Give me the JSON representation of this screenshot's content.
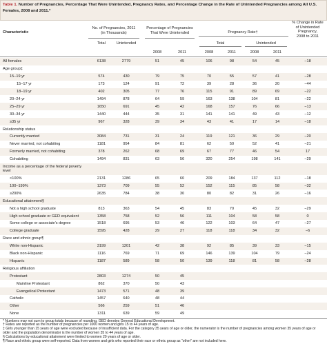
{
  "title": {
    "label": "Table 1.",
    "text": "Number of Pregnancies, Percentage That Were Unintended, Pregnancy Rates, and Percentage Change in the Rate of Unintended Pregnancies among All U.S. Females, 2008 and 2011.*"
  },
  "header": {
    "characteristic": "Characteristic",
    "pregnancies": {
      "title": [
        "No. of Pregnancies, 2011",
        "(in Thousands)"
      ],
      "columns": [
        "Total",
        "Unintended"
      ]
    },
    "percentage": {
      "title": [
        "Percentage of Pregnancies",
        "That Were Unintended"
      ],
      "columns": [
        "2008",
        "2011"
      ]
    },
    "rate": {
      "title": "Pregnancy Rate†",
      "groups": [
        {
          "name": "Total",
          "columns": [
            "2008",
            "2011"
          ]
        },
        {
          "name": "Unintended",
          "columns": [
            "2008",
            "2011"
          ]
        }
      ]
    },
    "change": [
      "% Change in Rate",
      "of Unintended",
      "Pregnancy,",
      "2008 to 2011"
    ]
  },
  "rows": [
    {
      "label": "All females",
      "cells": [
        "6138",
        "2779",
        "51",
        "45",
        "106",
        "98",
        "54",
        "45",
        "−18"
      ]
    },
    {
      "heading": "Age group‡",
      "rows": [
        {
          "label": "15–19 yr",
          "cells": [
            "574",
            "430",
            "79",
            "75",
            "70",
            "55",
            "57",
            "41",
            "−28"
          ],
          "subrows": [
            {
              "label": "15–17 yr",
              "cells": [
                "173",
                "124",
                "91",
                "72",
                "39",
                "28",
                "36",
                "20",
                "−44"
              ]
            },
            {
              "label": "18–19 yr",
              "cells": [
                "402",
                "305",
                "77",
                "76",
                "115",
                "91",
                "89",
                "69",
                "−22"
              ]
            }
          ]
        },
        {
          "label": "20–24 yr",
          "cells": [
            "1494",
            "878",
            "64",
            "59",
            "163",
            "138",
            "104",
            "81",
            "−22"
          ]
        },
        {
          "label": "25–29 yr",
          "cells": [
            "1650",
            "691",
            "45",
            "42",
            "168",
            "157",
            "76",
            "66",
            "−13"
          ]
        },
        {
          "label": "30–34 yr",
          "cells": [
            "1440",
            "444",
            "35",
            "31",
            "141",
            "141",
            "49",
            "43",
            "−12"
          ]
        },
        {
          "label": "≥35 yr",
          "cells": [
            "967",
            "328",
            "39",
            "34",
            "43",
            "41",
            "17",
            "14",
            "−18"
          ]
        }
      ]
    },
    {
      "heading": "Relationship status",
      "rows": [
        {
          "label": "Currently married",
          "cells": [
            "3084",
            "731",
            "31",
            "24",
            "119",
            "121",
            "36",
            "29",
            "−20"
          ]
        },
        {
          "label": "Never married, not cohabiting",
          "cells": [
            "1181",
            "954",
            "84",
            "81",
            "62",
            "50",
            "52",
            "41",
            "−21"
          ]
        },
        {
          "label": "Formerly married, not cohabiting",
          "cells": [
            "378",
            "262",
            "68",
            "69",
            "67",
            "77",
            "46",
            "54",
            "17"
          ]
        },
        {
          "label": "Cohabiting",
          "cells": [
            "1494",
            "831",
            "63",
            "56",
            "320",
            "254",
            "198",
            "141",
            "−29"
          ]
        }
      ]
    },
    {
      "heading": "Income as a percentage of the federal poverty level",
      "rows": [
        {
          "label": "<100%",
          "cells": [
            "2131",
            "1286",
            "65",
            "60",
            "209",
            "184",
            "137",
            "112",
            "−18"
          ]
        },
        {
          "label": "100–199%",
          "cells": [
            "1373",
            "709",
            "55",
            "52",
            "152",
            "115",
            "85",
            "58",
            "−32"
          ]
        },
        {
          "label": "≥200%",
          "cells": [
            "2635",
            "784",
            "38",
            "30",
            "80",
            "82",
            "31",
            "26",
            "−16"
          ]
        }
      ]
    },
    {
      "heading": "Educational attainment§",
      "rows": [
        {
          "label": "Not a high school graduate",
          "cells": [
            "813",
            "363",
            "54",
            "45",
            "83",
            "70",
            "45",
            "32",
            "−29"
          ]
        },
        {
          "label": "High school graduate or GED equivalent",
          "cells": [
            "1358",
            "758",
            "52",
            "56",
            "111",
            "104",
            "58",
            "58",
            "0"
          ]
        },
        {
          "label": "Some college or associate’s degree",
          "cells": [
            "1518",
            "695",
            "53",
            "46",
            "122",
            "103",
            "64",
            "47",
            "−27"
          ]
        },
        {
          "label": "College graduate",
          "cells": [
            "1595",
            "428",
            "29",
            "27",
            "118",
            "118",
            "34",
            "32",
            "−6"
          ]
        }
      ]
    },
    {
      "heading": "Race and ethnic group¶",
      "rows": [
        {
          "label": "White non-Hispanic",
          "cells": [
            "3199",
            "1201",
            "42",
            "38",
            "92",
            "85",
            "39",
            "33",
            "−15"
          ]
        },
        {
          "label": "Black non-Hispanic",
          "cells": [
            "1116",
            "769",
            "71",
            "69",
            "146",
            "139",
            "104",
            "79",
            "−24"
          ]
        },
        {
          "label": "Hispanic",
          "cells": [
            "1187",
            "589",
            "58",
            "50",
            "139",
            "118",
            "81",
            "58",
            "−28"
          ]
        }
      ]
    },
    {
      "heading": "Religious affiliation",
      "rows": [
        {
          "label": "Protestant",
          "cells": [
            "2803",
            "1274",
            "50",
            "45"
          ],
          "subrows": [
            {
              "label": "Mainline Protestant",
              "cells": [
                "862",
                "370",
                "50",
                "43"
              ]
            },
            {
              "label": "Evangelical Protestant",
              "cells": [
                "1473",
                "571",
                "48",
                "39"
              ]
            }
          ]
        },
        {
          "label": "Catholic",
          "cells": [
            "1457",
            "640",
            "48",
            "44"
          ]
        },
        {
          "label": "Other",
          "cells": [
            "566",
            "259",
            "51",
            "46"
          ]
        },
        {
          "label": "None",
          "cells": [
            "1311",
            "639",
            "59",
            "49"
          ]
        }
      ]
    }
  ],
  "footnotes": [
    "* Numbers may not sum to group totals because of rounding. GED denotes General Educational Development.",
    "† Rates are reported as the number of pregnancies per 1000 women and girls 15 to 44 years of age.",
    "‡ Girls younger than 15 years of age were excluded because of insufficient data. For the category 35 years of age or older, the numerator is the number of pregnancies among women 35 years of age or older and the population denominator is the number of women 35 to 44 years of age.",
    "§ Calculations by educational attainment were limited to women 20 years of age or older.",
    "¶ Race and ethnic group were self-reported. Data from women and girls who reported their race or ethnic group as “other” are not included here."
  ]
}
